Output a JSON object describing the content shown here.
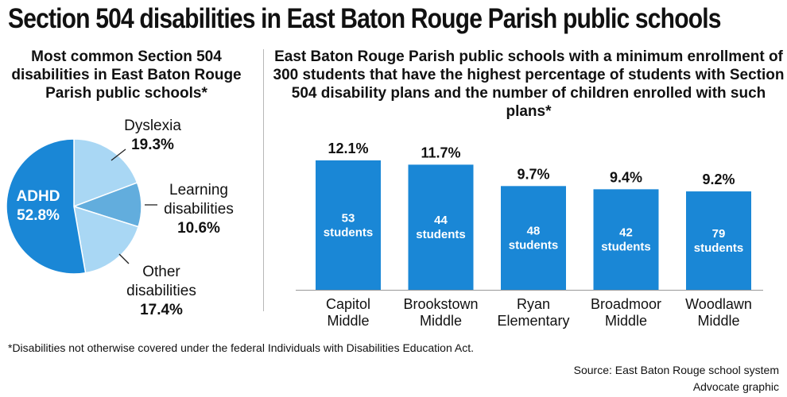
{
  "title": "Section 504 disabilities in East Baton Rouge Parish public schools",
  "footnote": "*Disabilities not otherwise covered under the federal Individuals with Disabilities Education Act.",
  "source": "Source: East Baton Rouge school system",
  "credit": "Advocate graphic",
  "colors": {
    "primary": "#1a87d6",
    "light": "#a9d7f4",
    "mid": "#62addd",
    "text": "#111111"
  },
  "chart_data": [
    {
      "type": "pie",
      "title": "Most common Section 504 disabilities in East Baton Rouge Parish public schools*",
      "slices": [
        {
          "name": "Dyslexia",
          "label_lines": [
            "Dyslexia"
          ],
          "value": 19.3,
          "value_label": "19.3%",
          "color": "#a9d7f4"
        },
        {
          "name": "Learning disabilities",
          "label_lines": [
            "Learning",
            "disabilities"
          ],
          "value": 10.6,
          "value_label": "10.6%",
          "color": "#62addd"
        },
        {
          "name": "Other disabilities",
          "label_lines": [
            "Other",
            "disabilities"
          ],
          "value": 17.4,
          "value_label": "17.4%",
          "color": "#a9d7f4"
        },
        {
          "name": "ADHD",
          "label_lines": [
            "ADHD"
          ],
          "value": 52.8,
          "value_label": "52.8%",
          "color": "#1a87d6"
        }
      ]
    },
    {
      "type": "bar",
      "title": "East Baton Rouge Parish public schools with a minimum enrollment of 300 students that have the highest percentage of students with Section 504 disability plans and the number of children enrolled with such plans*",
      "categories": [
        [
          "Capitol",
          "Middle"
        ],
        [
          "Brookstown",
          "Middle"
        ],
        [
          "Ryan",
          "Elementary"
        ],
        [
          "Broadmoor",
          "Middle"
        ],
        [
          "Woodlawn",
          "Middle"
        ]
      ],
      "values": [
        12.1,
        11.7,
        9.7,
        9.4,
        9.2
      ],
      "value_labels": [
        "12.1%",
        "11.7%",
        "9.7%",
        "9.4%",
        "9.2%"
      ],
      "students": [
        53,
        44,
        48,
        42,
        79
      ],
      "students_unit": "students",
      "ylim": [
        0,
        12.1
      ],
      "grid": false,
      "legend": "none"
    }
  ]
}
